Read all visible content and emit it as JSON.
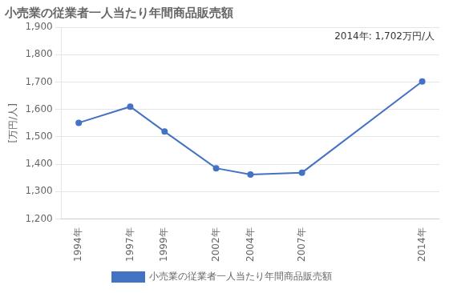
{
  "chart_data": {
    "type": "line",
    "title": "小売業の従業者一人当たり年間商品販売額",
    "ylabel": "[万円/人]",
    "annotation": "2014年: 1,702万円/人",
    "x": [
      1994,
      1997,
      1999,
      2002,
      2004,
      2007,
      2014
    ],
    "xlim": [
      1993,
      2015
    ],
    "xticks": [
      {
        "value": 1994,
        "label": "1994年"
      },
      {
        "value": 1997,
        "label": "1997年"
      },
      {
        "value": 1999,
        "label": "1999年"
      },
      {
        "value": 2002,
        "label": "2002年"
      },
      {
        "value": 2004,
        "label": "2004年"
      },
      {
        "value": 2007,
        "label": "2007年"
      },
      {
        "value": 2014,
        "label": "2014年"
      }
    ],
    "ylim": [
      1200,
      1900
    ],
    "yticks": [
      {
        "value": 1200,
        "label": "1,200"
      },
      {
        "value": 1300,
        "label": "1,300"
      },
      {
        "value": 1400,
        "label": "1,400"
      },
      {
        "value": 1500,
        "label": "1,500"
      },
      {
        "value": 1600,
        "label": "1,600"
      },
      {
        "value": 1700,
        "label": "1,700"
      },
      {
        "value": 1800,
        "label": "1,800"
      },
      {
        "value": 1900,
        "label": "1,900"
      }
    ],
    "grid": true,
    "legend": "bottom",
    "series": [
      {
        "name": "小売業の従業者一人当たり年間商品販売額",
        "color": "#4472C4",
        "marker": "circle",
        "values": [
          1551,
          1610,
          1519,
          1385,
          1362,
          1369,
          1702
        ]
      }
    ]
  }
}
